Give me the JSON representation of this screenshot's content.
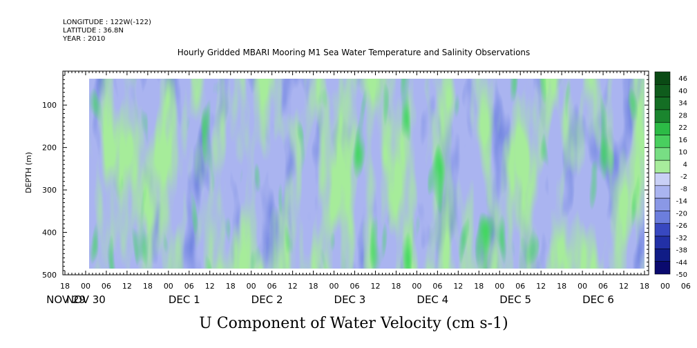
{
  "header": {
    "longitude": "LONGITUDE : 122W(-122)",
    "latitude": "LATITUDE : 36.8N",
    "year": "YEAR : 2010"
  },
  "chart_data": {
    "type": "heatmap",
    "title": "Hourly Gridded MBARI Mooring M1 Sea Water Temperature and Salinity Observations",
    "xlabel": "U Component of Water Velocity (cm s-1)",
    "ylabel": "DEPTH (m)",
    "y_range": [
      20,
      500
    ],
    "y_ticks": [
      100,
      200,
      300,
      400,
      500
    ],
    "y_tick_labels": [
      "100",
      "200",
      "300",
      "400",
      "500"
    ],
    "x_range_hours": [
      "2010-11-29 18:00",
      "2010-12-06 18:00"
    ],
    "x_tick_labels": [
      "18",
      "00",
      "06",
      "12",
      "18",
      "00",
      "06",
      "12",
      "18",
      "00",
      "06",
      "12",
      "18",
      "00",
      "06",
      "12",
      "18",
      "00",
      "06",
      "12",
      "18",
      "00",
      "06",
      "12",
      "18",
      "00",
      "06",
      "12",
      "18",
      "00",
      "06",
      "12",
      "18"
    ],
    "x_date_labels": [
      "NOV 29",
      "NOV 30",
      "DEC  1",
      "DEC  2",
      "DEC  3",
      "DEC  4",
      "DEC  5",
      "DEC  6"
    ],
    "colorbar": {
      "levels": [
        -50,
        -44,
        -38,
        -32,
        -26,
        -20,
        -14,
        -8,
        -2,
        4,
        10,
        16,
        22,
        28,
        34,
        40,
        46
      ],
      "labels": [
        "46",
        "40",
        "34",
        "28",
        "22",
        "16",
        "10",
        "4",
        "-2",
        "-8",
        "-14",
        "-20",
        "-26",
        "-32",
        "-38",
        "-44",
        "-50"
      ],
      "colors": {
        "low": "#0a0a6e",
        "mid_blue": "#5a6fd8",
        "light_blue": "#aab4f0",
        "white": "#ffffff",
        "light_green": "#a8ec9c",
        "green": "#2fd44a",
        "high": "#0a4a14"
      }
    },
    "grid": false
  }
}
